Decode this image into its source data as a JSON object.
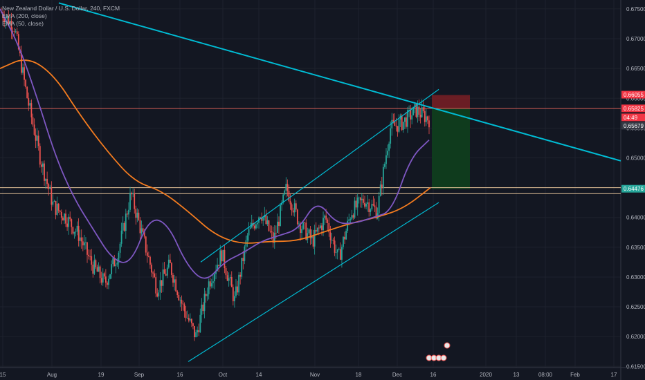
{
  "legend": {
    "symbol": "New Zealand Dollar / U.S. Dollar, 240, FXCM",
    "ema200": "EMA (200, close)",
    "ema50": "EMA (50, close)"
  },
  "colors": {
    "background": "#131722",
    "up_candle": "#26a69a",
    "down_candle": "#ef5350",
    "ema200": "#f57c1f",
    "ema50": "#7e57c2",
    "trendline": "#00bcd4",
    "horizontal_line": "#ffd8a8",
    "resistance_line": "#f06a5f",
    "stop_zone": "#7a1f24",
    "target_zone": "#0f3d1d"
  },
  "price_labels": [
    {
      "value": "0.66055",
      "bg": "#f23645"
    },
    {
      "value": "0.65825",
      "bg": "#f23645"
    },
    {
      "value": "04:49",
      "bg": "#f23645"
    },
    {
      "value": "0.65679",
      "bg": "#363a45"
    },
    {
      "value": "0.64476",
      "bg": "#26a69a"
    }
  ],
  "chart_data": {
    "type": "candlestick",
    "title": "New Zealand Dollar / U.S. Dollar, 240, FXCM",
    "ylim": [
      0.6148,
      0.6765
    ],
    "y_ticks": [
      "0.67500",
      "0.67000",
      "0.66500",
      "0.66000",
      "0.65500",
      "0.65000",
      "0.64500",
      "0.64000",
      "0.63500",
      "0.63000",
      "0.62500",
      "0.62000",
      "0.61500"
    ],
    "x_ticks": [
      "15",
      "Aug",
      "19",
      "Sep",
      "16",
      "Oct",
      "14",
      "Nov",
      "18",
      "Dec",
      "16",
      "2020",
      "13",
      "08:00",
      "Feb",
      "17"
    ],
    "series": [
      {
        "name": "EMA (200, close)",
        "type": "line"
      },
      {
        "name": "EMA (50, close)",
        "type": "line"
      }
    ],
    "price_path": [
      0.6745,
      0.672,
      0.66,
      0.65,
      0.642,
      0.64,
      0.637,
      0.632,
      0.629,
      0.634,
      0.644,
      0.636,
      0.628,
      0.632,
      0.625,
      0.62,
      0.629,
      0.634,
      0.626,
      0.637,
      0.641,
      0.636,
      0.645,
      0.639,
      0.636,
      0.64,
      0.633,
      0.641,
      0.643,
      0.641,
      0.655,
      0.656,
      0.658,
      0.6565
    ],
    "ema200_path": [
      0.665,
      0.667,
      0.664,
      0.657,
      0.651,
      0.646,
      0.6445,
      0.641,
      0.637,
      0.6355,
      0.636,
      0.636,
      0.6375,
      0.639,
      0.64,
      0.6415,
      0.645
    ],
    "ema50_path": [
      0.675,
      0.669,
      0.66,
      0.65,
      0.643,
      0.638,
      0.633,
      0.632,
      0.64,
      0.639,
      0.632,
      0.629,
      0.6325,
      0.634,
      0.636,
      0.637,
      0.638,
      0.643,
      0.639,
      0.639,
      0.64,
      0.641,
      0.65,
      0.653
    ],
    "trendlines": [
      {
        "name": "long-downtrend",
        "from": [
          0.676
        ],
        "to": [
          0.6495
        ]
      },
      {
        "name": "channel-upper",
        "from": [
          0.6325
        ],
        "to": [
          0.6615
        ]
      },
      {
        "name": "channel-lower",
        "from": [
          0.6158
        ],
        "to": [
          0.6425
        ]
      }
    ],
    "horizontal_lines": [
      0.645,
      0.644,
      0.6583
    ],
    "position": {
      "entry": 0.6583,
      "stop": 0.66055,
      "target": 0.64476
    }
  }
}
